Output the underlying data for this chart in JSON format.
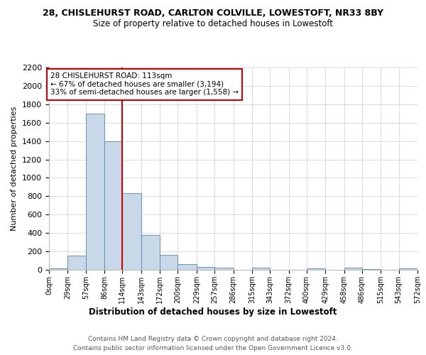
{
  "title": "28, CHISLEHURST ROAD, CARLTON COLVILLE, LOWESTOFT, NR33 8BY",
  "subtitle": "Size of property relative to detached houses in Lowestoft",
  "xlabel": "Distribution of detached houses by size in Lowestoft",
  "ylabel": "Number of detached properties",
  "bar_color": "#c8d8e8",
  "bar_edge_color": "#5588aa",
  "background_color": "#ffffff",
  "grid_color": "#cccccc",
  "vline_color": "#cc0000",
  "vline_x": 113,
  "bin_edges": [
    0,
    29,
    57,
    86,
    114,
    143,
    172,
    200,
    229,
    257,
    286,
    315,
    343,
    372,
    400,
    429,
    458,
    486,
    515,
    543,
    572
  ],
  "bar_heights": [
    15,
    155,
    1700,
    1400,
    830,
    380,
    165,
    65,
    30,
    25,
    0,
    20,
    0,
    0,
    15,
    0,
    20,
    10,
    0,
    15
  ],
  "annotation_line1": "28 CHISLEHURST ROAD: 113sqm",
  "annotation_line2": "← 67% of detached houses are smaller (3,194)",
  "annotation_line3": "33% of semi-detached houses are larger (1,558) →",
  "footer_line1": "Contains HM Land Registry data © Crown copyright and database right 2024.",
  "footer_line2": "Contains public sector information licensed under the Open Government Licence v3.0.",
  "ylim": [
    0,
    2200
  ],
  "yticks": [
    0,
    200,
    400,
    600,
    800,
    1000,
    1200,
    1400,
    1600,
    1800,
    2000,
    2200
  ]
}
